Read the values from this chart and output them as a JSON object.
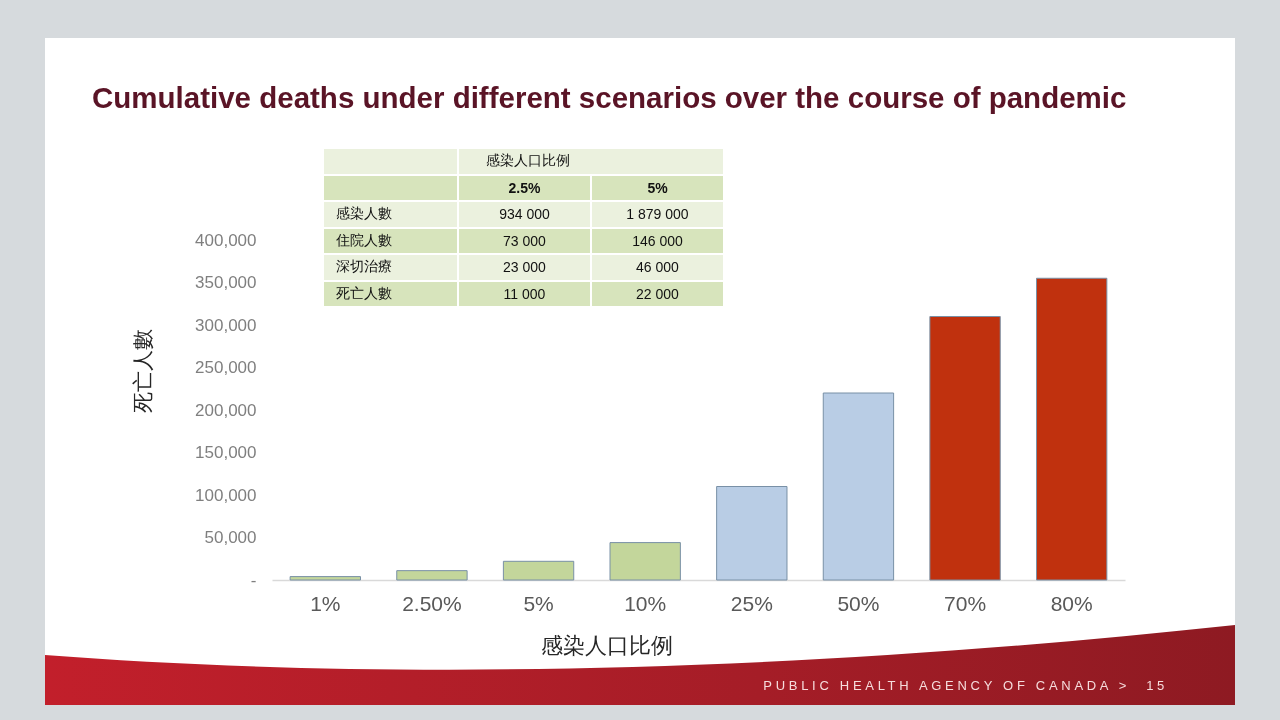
{
  "chart_data": [
    {
      "type": "bar",
      "title": "Cumulative deaths under different scenarios over the course of pandemic",
      "xlabel": "感染人口比例",
      "ylabel": "死亡人數",
      "categories": [
        "1%",
        "2.50%",
        "5%",
        "10%",
        "25%",
        "50%",
        "70%",
        "80%"
      ],
      "values": [
        4000,
        11000,
        22000,
        44000,
        110000,
        220000,
        310000,
        355000
      ],
      "colors": [
        "#c3d69b",
        "#c3d69b",
        "#c3d69b",
        "#c3d69b",
        "#b9cde5",
        "#b9cde5",
        "#c0310e",
        "#c0310e"
      ],
      "ylim": [
        0,
        400000
      ],
      "yticks": [
        {
          "value": 0,
          "label": "-"
        },
        {
          "value": 50000,
          "label": "50,000"
        },
        {
          "value": 100000,
          "label": "100,000"
        },
        {
          "value": 150000,
          "label": "150,000"
        },
        {
          "value": 200000,
          "label": "200,000"
        },
        {
          "value": 250000,
          "label": "250,000"
        },
        {
          "value": 300000,
          "label": "300,000"
        },
        {
          "value": 350000,
          "label": "350,000"
        },
        {
          "value": 400000,
          "label": "400,000"
        }
      ],
      "annotations": [
        "PUBLIC HEALTH AGENCY OF CANADA >",
        "15"
      ]
    },
    {
      "type": "other",
      "title": "感染人口比例",
      "annotations": [
        "2.5%",
        "5%",
        "感染人數",
        "934 000",
        "1 879 000",
        "住院人數",
        "73 000",
        "146 000",
        "深切治療",
        "23 000",
        "46 000",
        "死亡人數",
        "11 000",
        "22 000"
      ]
    }
  ]
}
